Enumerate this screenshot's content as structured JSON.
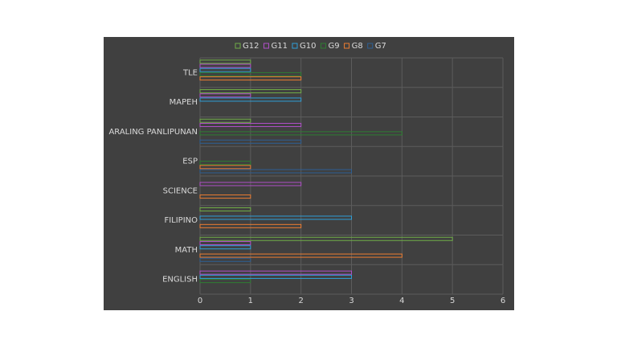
{
  "chart_data": {
    "type": "hbar",
    "categories": [
      "ENGLISH",
      "MATH",
      "FILIPINO",
      "SCIENCE",
      "ESP",
      "ARALING PANLIPUNAN",
      "MAPEH",
      "TLE"
    ],
    "series": [
      {
        "name": "G12",
        "color": "#70ad47",
        "values": [
          0,
          5,
          1,
          0,
          0,
          1,
          2,
          1
        ]
      },
      {
        "name": "G11",
        "color": "#b04fc8",
        "values": [
          3,
          1,
          0,
          2,
          0,
          2,
          1,
          1
        ]
      },
      {
        "name": "G10",
        "color": "#2f9fd8",
        "values": [
          3,
          1,
          3,
          0,
          0,
          0,
          2,
          1
        ]
      },
      {
        "name": "G9",
        "color": "#2e7d32",
        "values": [
          1,
          0,
          0,
          0,
          1,
          4,
          0,
          2
        ]
      },
      {
        "name": "G8",
        "color": "#ed7d31",
        "values": [
          0,
          4,
          2,
          1,
          1,
          0,
          0,
          2
        ]
      },
      {
        "name": "G7",
        "color": "#2d5f94",
        "values": [
          0,
          1,
          0,
          0,
          3,
          2,
          0,
          0
        ]
      }
    ],
    "xlim": [
      0,
      6
    ],
    "xticks": [
      0,
      1,
      2,
      3,
      4,
      5,
      6
    ],
    "grid": true,
    "legend": "top"
  }
}
